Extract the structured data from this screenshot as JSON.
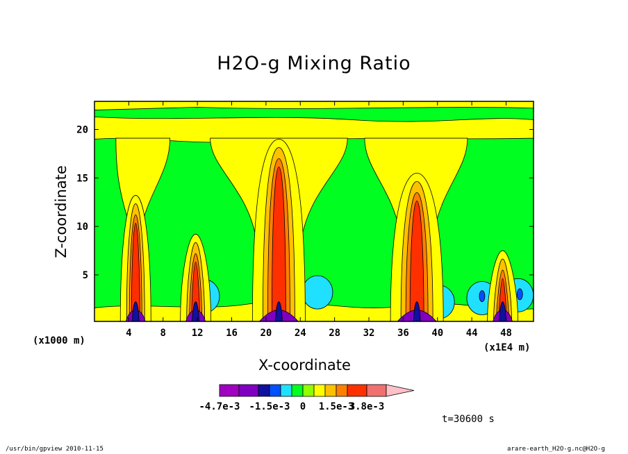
{
  "chart_data": {
    "type": "heatmap",
    "title": "H2O-g Mixing Ratio",
    "xlabel": "X-coordinate",
    "ylabel": "Z-coordinate",
    "x_scale_label": "(x1000 m)",
    "x_unit_label": "(x1E4 m)",
    "x_ticks": [
      "4",
      "8",
      "12",
      "16",
      "20",
      "24",
      "28",
      "32",
      "36",
      "40",
      "44",
      "48"
    ],
    "x_tick_values": [
      4,
      8,
      12,
      16,
      20,
      24,
      28,
      32,
      36,
      40,
      44,
      48
    ],
    "y_ticks": [
      "5",
      "10",
      "15",
      "20"
    ],
    "y_tick_values": [
      5,
      10,
      15,
      20
    ],
    "xlim": [
      0,
      51.2
    ],
    "ylim": [
      0.2,
      22.9
    ],
    "colorbar": {
      "labels": [
        "-4.7e-3",
        "-1.5e-3",
        "0",
        "1.5e-3",
        "3.8e-3"
      ],
      "colors": [
        "#a000c0",
        "#8000c0",
        "#1010a0",
        "#0050ff",
        "#20e0ff",
        "#00ff20",
        "#90ff00",
        "#ffff00",
        "#ffc000",
        "#ff8000",
        "#ff3000",
        "#f07070",
        "#ffc0c8"
      ]
    },
    "palette": {
      "green": "#00ff20",
      "yellow": "#ffff00",
      "light_cyan": "#20e0ff",
      "blue": "#0050ff",
      "navy": "#1010a0",
      "purple": "#8000c0",
      "orange": "#ffc000",
      "dark_orange": "#ff8000",
      "red": "#ff3000",
      "salmon": "#f07070"
    },
    "towers": [
      {
        "x": 4.8,
        "top": 13.2,
        "intensity": 1
      },
      {
        "x": 11.8,
        "top": 9.2,
        "intensity": 1
      },
      {
        "x": 21.5,
        "top": 19.0,
        "intensity": 2
      },
      {
        "x": 37.6,
        "top": 15.5,
        "intensity": 2
      },
      {
        "x": 47.6,
        "top": 7.5,
        "intensity": 1
      }
    ],
    "cyan_patches": [
      {
        "x": 12.8,
        "z": 2.8
      },
      {
        "x": 26.0,
        "z": 3.2
      },
      {
        "x": 40.2,
        "z": 2.2
      },
      {
        "x": 45.2,
        "z": 2.6
      },
      {
        "x": 49.4,
        "z": 2.9
      }
    ]
  },
  "timestamp": "t=30600 s",
  "footer_left": "/usr/bin/gpview   2010-11-15",
  "footer_right": "arare-earth_H2O-g.nc@H2O-g"
}
